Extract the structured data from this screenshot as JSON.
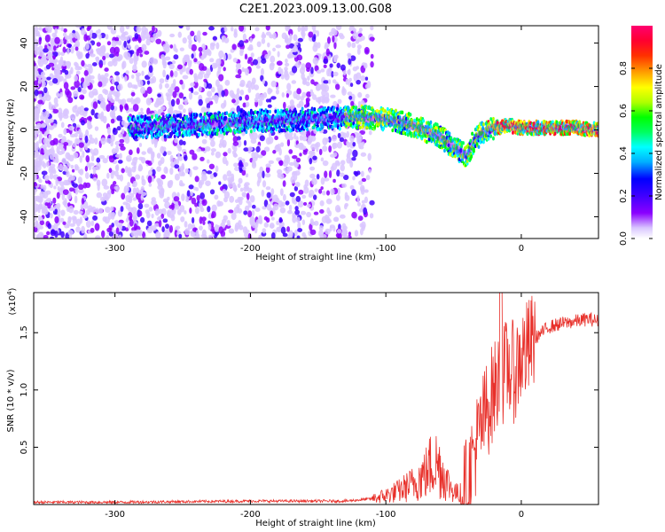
{
  "title": "C2E1.2023.009.13.00.G08",
  "chart_data": [
    {
      "type": "heatmap",
      "xlabel": "Height of straight line (km)",
      "ylabel": "Frequency (Hz)",
      "xlim": [
        -360,
        57
      ],
      "ylim": [
        -50,
        48
      ],
      "xticks": [
        -300,
        -200,
        -100,
        0
      ],
      "yticks": [
        -40,
        -20,
        0,
        20,
        40
      ],
      "colorbar": {
        "label": "Normalized spectral amplitude",
        "range": [
          0,
          1
        ],
        "ticks": [
          0.0,
          0.2,
          0.4,
          0.6,
          0.8
        ],
        "colormap": [
          "#ffffff",
          "#d9c6ff",
          "#8a00ff",
          "#4000ff",
          "#0000ff",
          "#00b0ff",
          "#00ffff",
          "#00ff60",
          "#00ff00",
          "#b0ff00",
          "#ffff00",
          "#ffa000",
          "#ff3000",
          "#ff0030",
          "#ff0070"
        ]
      },
      "ridge": {
        "description_points_x": [
          -290,
          -250,
          -200,
          -150,
          -120,
          -100,
          -80,
          -60,
          -50,
          -40,
          -35,
          -30,
          -20,
          -10,
          0,
          20,
          40,
          57
        ],
        "description_points_y": [
          1,
          2,
          4,
          5,
          6,
          5,
          2,
          -3,
          -8,
          -12,
          -5,
          -2,
          1,
          2,
          1,
          1,
          1,
          0
        ]
      }
    },
    {
      "type": "line",
      "xlabel": "Height of straight line (km)",
      "ylabel": "SNR (10 * v/v)",
      "yscale_label": "(x10",
      "yscale_exp": "4",
      "xlim": [
        -360,
        57
      ],
      "ylim": [
        0,
        1.85
      ],
      "xticks": [
        -300,
        -200,
        -100,
        0
      ],
      "yticks": [
        0.5,
        1.0,
        1.5
      ],
      "series": [
        {
          "color": "#e8302a",
          "x": [
            -360,
            -300,
            -200,
            -130,
            -110,
            -100,
            -90,
            -80,
            -70,
            -65,
            -60,
            -55,
            -50,
            -45,
            -40,
            -35,
            -30,
            -25,
            -20,
            -15,
            -10,
            -5,
            0,
            5,
            10,
            15,
            20,
            30,
            40,
            50,
            57
          ],
          "y": [
            0.02,
            0.02,
            0.03,
            0.03,
            0.05,
            0.08,
            0.12,
            0.18,
            0.28,
            0.38,
            0.33,
            0.2,
            0.12,
            0.08,
            0.15,
            0.45,
            0.65,
            0.85,
            1.0,
            1.1,
            1.2,
            1.15,
            1.3,
            1.35,
            1.45,
            1.5,
            1.55,
            1.58,
            1.6,
            1.62,
            1.6
          ]
        }
      ]
    }
  ]
}
